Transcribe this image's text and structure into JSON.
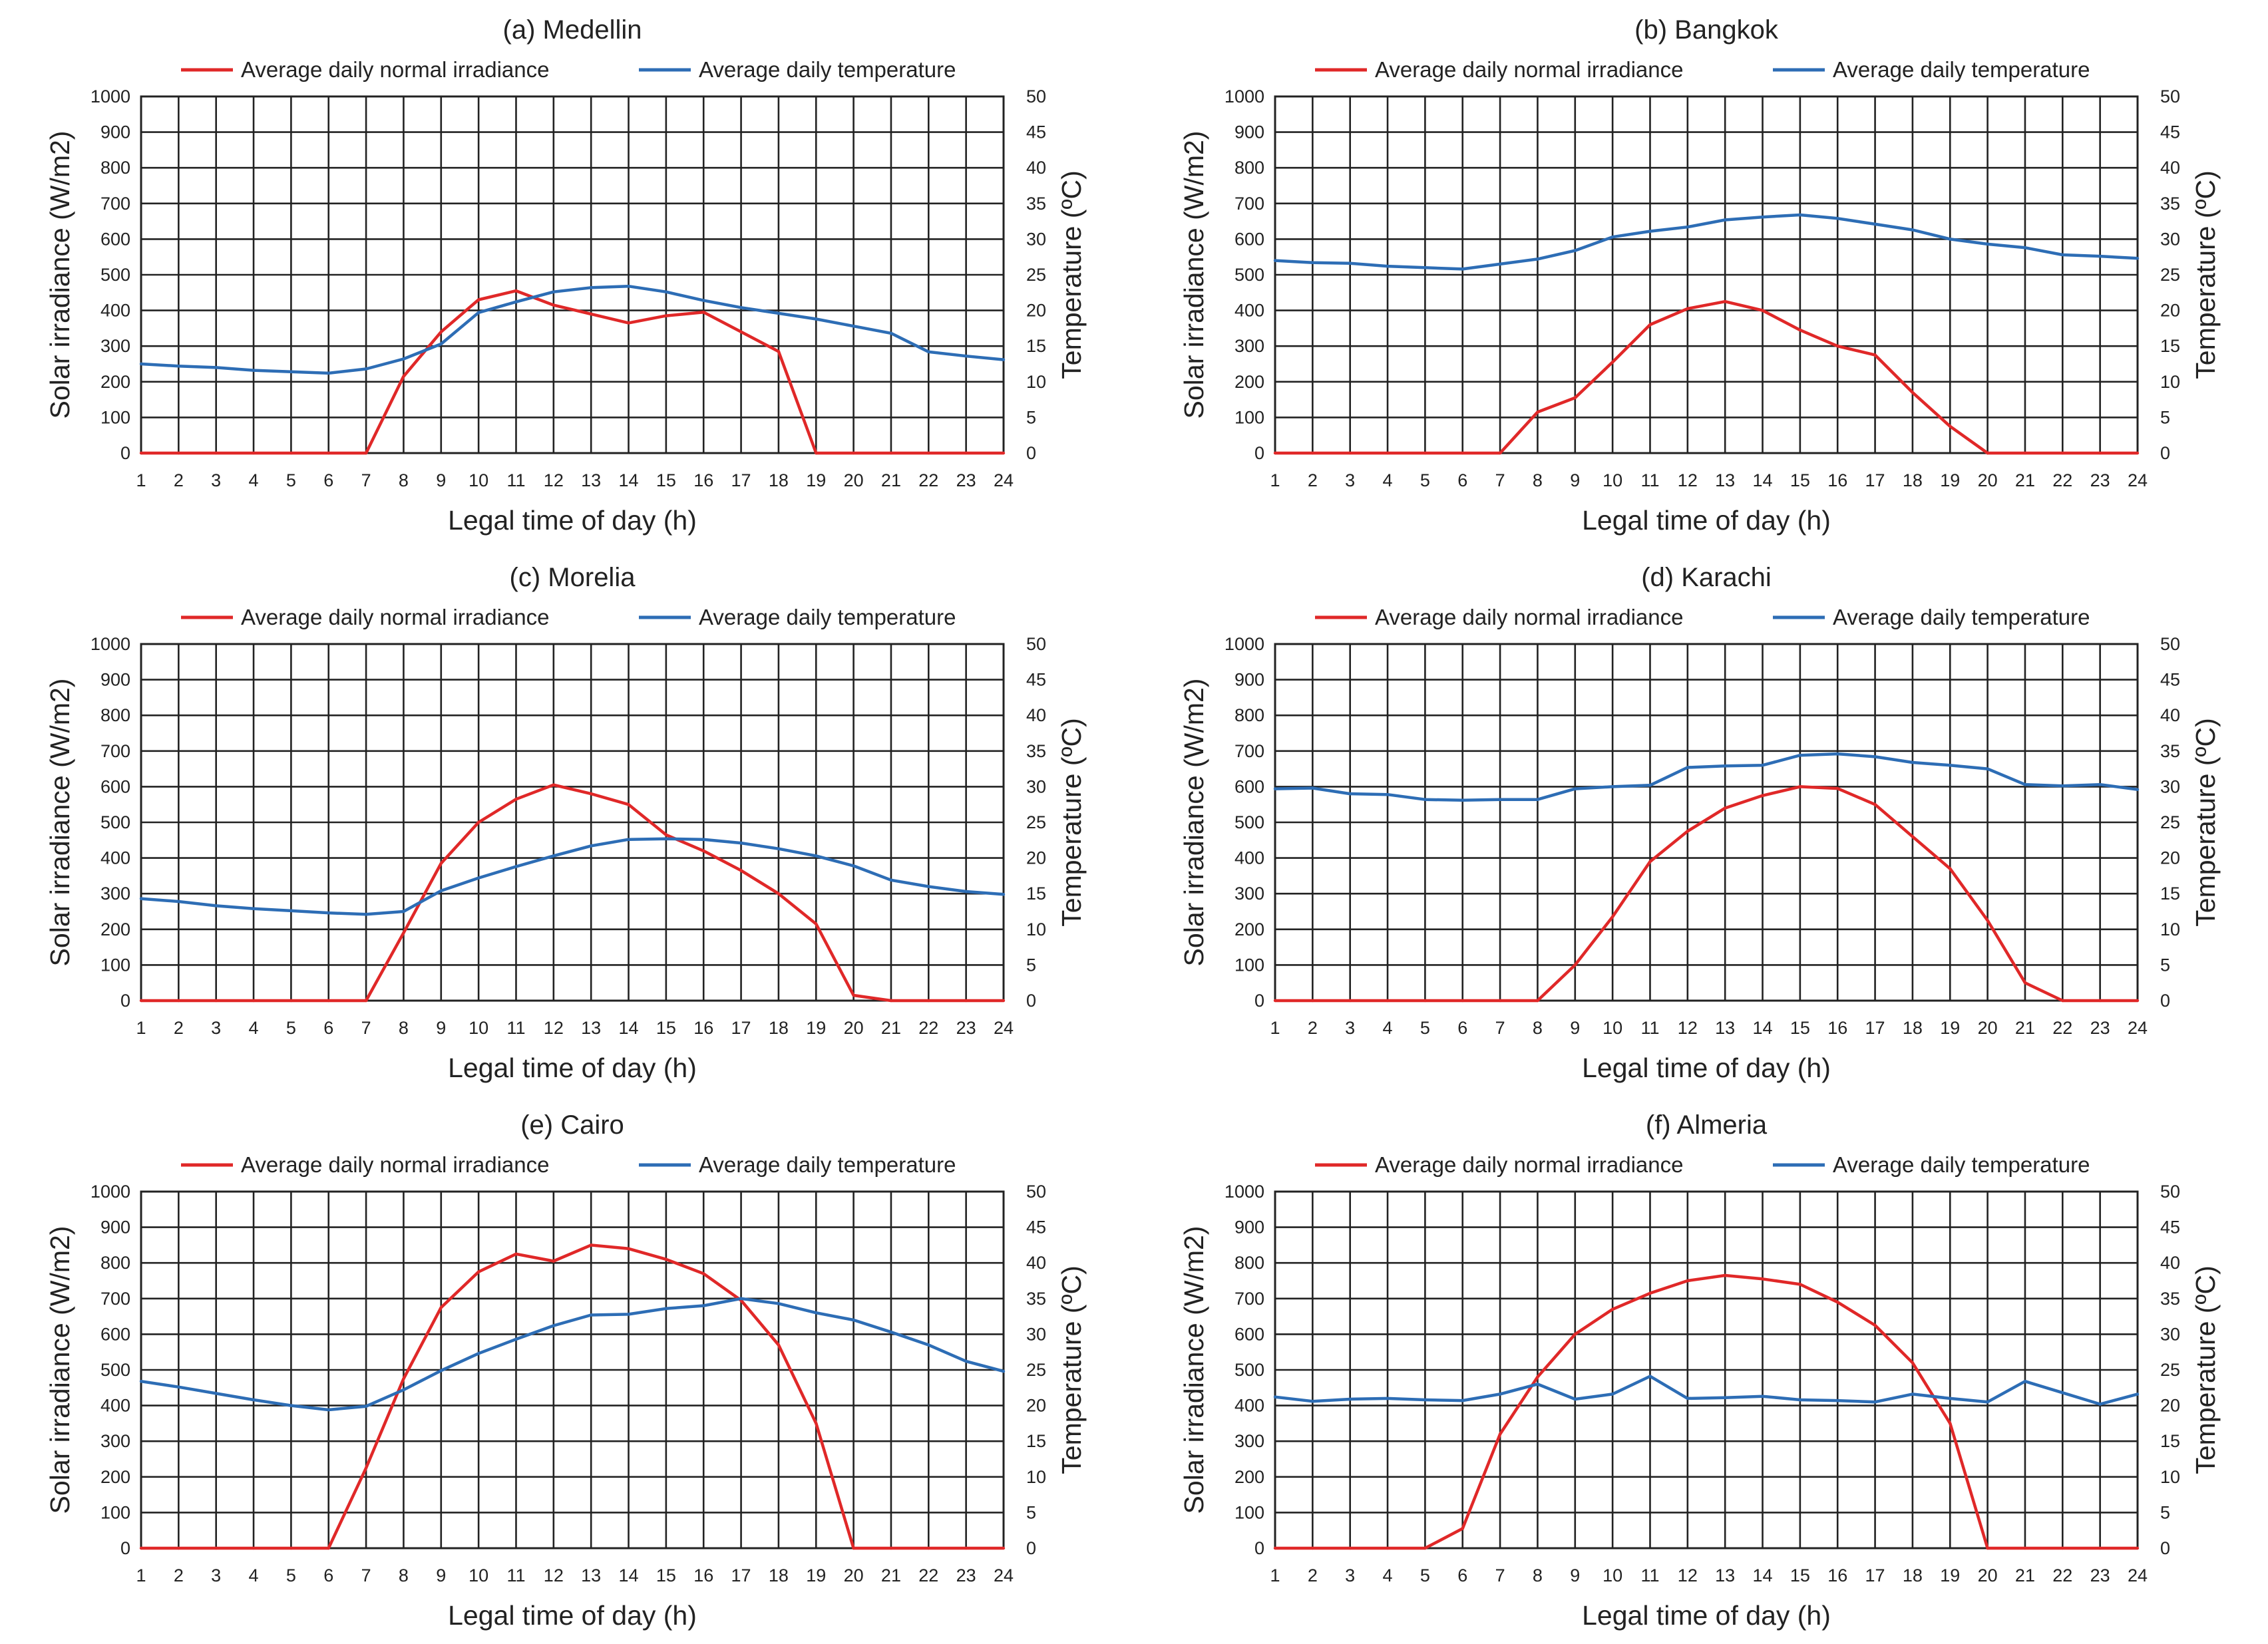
{
  "colors": {
    "irradiance": "#e02828",
    "temperature": "#2d6db5",
    "grid": "#222222"
  },
  "chart_data": [
    {
      "type": "line",
      "title": "(a) Medellin",
      "xlabel": "Legal time of day (h)",
      "ylabel": "Solar irradiance (W/m2)",
      "y2label": "Temperature (ºC)",
      "x": [
        1,
        2,
        3,
        4,
        5,
        6,
        7,
        8,
        9,
        10,
        11,
        12,
        13,
        14,
        15,
        16,
        17,
        18,
        19,
        20,
        21,
        22,
        23,
        24
      ],
      "ylim": [
        0,
        1000
      ],
      "yticks": [
        0,
        100,
        200,
        300,
        400,
        500,
        600,
        700,
        800,
        900,
        1000
      ],
      "y2lim": [
        0,
        50
      ],
      "y2ticks": [
        0,
        5,
        10,
        15,
        20,
        25,
        30,
        35,
        40,
        45,
        50
      ],
      "legend_position": "top",
      "series": [
        {
          "name": "Average daily normal irradiance",
          "axis": "left",
          "color": "#e02828",
          "values": [
            0,
            0,
            0,
            0,
            0,
            0,
            0,
            215,
            340,
            430,
            455,
            415,
            390,
            365,
            385,
            395,
            340,
            285,
            0,
            0,
            0,
            0,
            0,
            0
          ]
        },
        {
          "name": "Average daily temperature",
          "axis": "right",
          "color": "#2d6db5",
          "values": [
            12.5,
            12.2,
            12.0,
            11.6,
            11.4,
            11.2,
            11.8,
            13.2,
            15.3,
            19.7,
            21.2,
            22.6,
            23.2,
            23.4,
            22.6,
            21.4,
            20.4,
            19.6,
            18.8,
            17.8,
            16.8,
            14.2,
            13.6,
            13.1
          ]
        }
      ]
    },
    {
      "type": "line",
      "title": "(b) Bangkok",
      "xlabel": "Legal time of day (h)",
      "ylabel": "Solar irradiance (W/m2)",
      "y2label": "Temperature (ºC)",
      "x": [
        1,
        2,
        3,
        4,
        5,
        6,
        7,
        8,
        9,
        10,
        11,
        12,
        13,
        14,
        15,
        16,
        17,
        18,
        19,
        20,
        21,
        22,
        23,
        24
      ],
      "ylim": [
        0,
        1000
      ],
      "yticks": [
        0,
        100,
        200,
        300,
        400,
        500,
        600,
        700,
        800,
        900,
        1000
      ],
      "y2lim": [
        0,
        50
      ],
      "y2ticks": [
        0,
        5,
        10,
        15,
        20,
        25,
        30,
        35,
        40,
        45,
        50
      ],
      "legend_position": "top",
      "series": [
        {
          "name": "Average daily normal irradiance",
          "axis": "left",
          "color": "#e02828",
          "values": [
            0,
            0,
            0,
            0,
            0,
            0,
            0,
            115,
            155,
            255,
            360,
            405,
            425,
            400,
            345,
            300,
            275,
            170,
            75,
            0,
            0,
            0,
            0,
            0
          ]
        },
        {
          "name": "Average daily temperature",
          "axis": "right",
          "color": "#2d6db5",
          "values": [
            27.0,
            26.7,
            26.6,
            26.2,
            26.0,
            25.8,
            26.5,
            27.2,
            28.4,
            30.3,
            31.1,
            31.7,
            32.7,
            33.1,
            33.4,
            32.9,
            32.1,
            31.3,
            30.0,
            29.3,
            28.8,
            27.8,
            27.6,
            27.3
          ]
        }
      ]
    },
    {
      "type": "line",
      "title": "(c) Morelia",
      "xlabel": "Legal time of day (h)",
      "ylabel": "Solar irradiance (W/m2)",
      "y2label": "Temperature (ºC)",
      "x": [
        1,
        2,
        3,
        4,
        5,
        6,
        7,
        8,
        9,
        10,
        11,
        12,
        13,
        14,
        15,
        16,
        17,
        18,
        19,
        20,
        21,
        22,
        23,
        24
      ],
      "ylim": [
        0,
        1000
      ],
      "yticks": [
        0,
        100,
        200,
        300,
        400,
        500,
        600,
        700,
        800,
        900,
        1000
      ],
      "y2lim": [
        0,
        50
      ],
      "y2ticks": [
        0,
        5,
        10,
        15,
        20,
        25,
        30,
        35,
        40,
        45,
        50
      ],
      "legend_position": "top",
      "series": [
        {
          "name": "Average daily normal irradiance",
          "axis": "left",
          "color": "#e02828",
          "values": [
            0,
            0,
            0,
            0,
            0,
            0,
            0,
            190,
            385,
            500,
            565,
            605,
            580,
            550,
            465,
            420,
            365,
            300,
            215,
            15,
            0,
            0,
            0,
            0
          ]
        },
        {
          "name": "Average daily temperature",
          "axis": "right",
          "color": "#2d6db5",
          "values": [
            14.3,
            13.9,
            13.3,
            12.9,
            12.6,
            12.3,
            12.1,
            12.5,
            15.4,
            17.2,
            18.8,
            20.3,
            21.7,
            22.6,
            22.7,
            22.6,
            22.1,
            21.3,
            20.3,
            18.9,
            16.9,
            16.0,
            15.3,
            14.9
          ]
        }
      ]
    },
    {
      "type": "line",
      "title": "(d) Karachi",
      "xlabel": "Legal time of day (h)",
      "ylabel": "Solar irradiance (W/m2)",
      "y2label": "Temperature (ºC)",
      "x": [
        1,
        2,
        3,
        4,
        5,
        6,
        7,
        8,
        9,
        10,
        11,
        12,
        13,
        14,
        15,
        16,
        17,
        18,
        19,
        20,
        21,
        22,
        23,
        24
      ],
      "ylim": [
        0,
        1000
      ],
      "yticks": [
        0,
        100,
        200,
        300,
        400,
        500,
        600,
        700,
        800,
        900,
        1000
      ],
      "y2lim": [
        0,
        50
      ],
      "y2ticks": [
        0,
        5,
        10,
        15,
        20,
        25,
        30,
        35,
        40,
        45,
        50
      ],
      "legend_position": "top",
      "series": [
        {
          "name": "Average daily normal irradiance",
          "axis": "left",
          "color": "#e02828",
          "values": [
            0,
            0,
            0,
            0,
            0,
            0,
            0,
            0,
            100,
            235,
            390,
            475,
            540,
            575,
            600,
            595,
            550,
            460,
            370,
            225,
            50,
            0,
            0,
            0
          ]
        },
        {
          "name": "Average daily temperature",
          "axis": "right",
          "color": "#2d6db5",
          "values": [
            29.7,
            29.8,
            29.0,
            28.9,
            28.2,
            28.1,
            28.2,
            28.2,
            29.7,
            30.0,
            30.2,
            32.7,
            32.9,
            33.0,
            34.4,
            34.6,
            34.2,
            33.4,
            33.0,
            32.5,
            30.3,
            30.1,
            30.3,
            29.6
          ]
        }
      ]
    },
    {
      "type": "line",
      "title": "(e) Cairo",
      "xlabel": "Legal time of day (h)",
      "ylabel": "Solar irradiance (W/m2)",
      "y2label": "Temperature (ºC)",
      "x": [
        1,
        2,
        3,
        4,
        5,
        6,
        7,
        8,
        9,
        10,
        11,
        12,
        13,
        14,
        15,
        16,
        17,
        18,
        19,
        20,
        21,
        22,
        23,
        24
      ],
      "ylim": [
        0,
        1000
      ],
      "yticks": [
        0,
        100,
        200,
        300,
        400,
        500,
        600,
        700,
        800,
        900,
        1000
      ],
      "y2lim": [
        0,
        50
      ],
      "y2ticks": [
        0,
        5,
        10,
        15,
        20,
        25,
        30,
        35,
        40,
        45,
        50
      ],
      "legend_position": "top",
      "series": [
        {
          "name": "Average daily normal irradiance",
          "axis": "left",
          "color": "#e02828",
          "values": [
            0,
            0,
            0,
            0,
            0,
            0,
            225,
            475,
            675,
            775,
            825,
            805,
            850,
            840,
            810,
            770,
            695,
            570,
            350,
            0,
            0,
            0,
            0,
            0
          ]
        },
        {
          "name": "Average daily temperature",
          "axis": "right",
          "color": "#2d6db5",
          "values": [
            23.4,
            22.6,
            21.7,
            20.8,
            20.0,
            19.4,
            19.9,
            22.2,
            24.9,
            27.3,
            29.3,
            31.2,
            32.7,
            32.8,
            33.6,
            34.0,
            35.0,
            34.3,
            33.0,
            32.0,
            30.3,
            28.5,
            26.2,
            24.8
          ]
        }
      ]
    },
    {
      "type": "line",
      "title": "(f) Almeria",
      "xlabel": "Legal time of day (h)",
      "ylabel": "Solar irradiance (W/m2)",
      "y2label": "Temperature (ºC)",
      "x": [
        1,
        2,
        3,
        4,
        5,
        6,
        7,
        8,
        9,
        10,
        11,
        12,
        13,
        14,
        15,
        16,
        17,
        18,
        19,
        20,
        21,
        22,
        23,
        24
      ],
      "ylim": [
        0,
        1000
      ],
      "yticks": [
        0,
        100,
        200,
        300,
        400,
        500,
        600,
        700,
        800,
        900,
        1000
      ],
      "y2lim": [
        0,
        50
      ],
      "y2ticks": [
        0,
        5,
        10,
        15,
        20,
        25,
        30,
        35,
        40,
        45,
        50
      ],
      "legend_position": "top",
      "series": [
        {
          "name": "Average daily normal irradiance",
          "axis": "left",
          "color": "#e02828",
          "values": [
            0,
            0,
            0,
            0,
            0,
            55,
            320,
            480,
            600,
            670,
            715,
            750,
            765,
            755,
            740,
            690,
            625,
            520,
            350,
            0,
            0,
            0,
            0,
            0
          ]
        },
        {
          "name": "Average daily temperature",
          "axis": "right",
          "color": "#2d6db5",
          "values": [
            21.2,
            20.6,
            20.9,
            21.0,
            20.8,
            20.7,
            21.6,
            23.0,
            20.9,
            21.6,
            24.1,
            21.0,
            21.1,
            21.3,
            20.8,
            20.7,
            20.5,
            21.6,
            21.0,
            20.5,
            23.4,
            21.8,
            20.2,
            21.6
          ]
        }
      ]
    }
  ]
}
